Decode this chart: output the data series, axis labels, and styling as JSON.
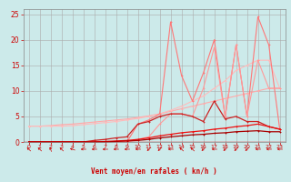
{
  "bg_color": "#cceaea",
  "grid_color": "#aaaaaa",
  "xlabel": "Vent moyen/en rafales ( kn/h )",
  "xlabel_color": "#cc0000",
  "tick_color": "#cc0000",
  "xlim": [
    -0.5,
    23.5
  ],
  "ylim": [
    0,
    26
  ],
  "yticks": [
    0,
    5,
    10,
    15,
    20,
    25
  ],
  "xticks": [
    0,
    1,
    2,
    3,
    4,
    5,
    6,
    7,
    8,
    9,
    10,
    11,
    12,
    13,
    14,
    15,
    16,
    17,
    18,
    19,
    20,
    21,
    22,
    23
  ],
  "series": [
    {
      "x": [
        0,
        1,
        2,
        3,
        4,
        5,
        6,
        7,
        8,
        9,
        10,
        11,
        12,
        13,
        14,
        15,
        16,
        17,
        18,
        19,
        20,
        21,
        22,
        23
      ],
      "y": [
        3.1,
        3.1,
        3.2,
        3.4,
        3.5,
        3.7,
        3.9,
        4.1,
        4.3,
        4.5,
        4.8,
        5.1,
        5.5,
        6.0,
        6.5,
        7.0,
        7.5,
        8.0,
        8.5,
        9.0,
        9.5,
        10.0,
        10.5,
        10.5
      ],
      "color": "#ffaaaa",
      "lw": 0.8,
      "marker": "+"
    },
    {
      "x": [
        0,
        1,
        2,
        3,
        4,
        5,
        6,
        7,
        8,
        9,
        10,
        11,
        12,
        13,
        14,
        15,
        16,
        17,
        18,
        19,
        20,
        21,
        22,
        23
      ],
      "y": [
        3.1,
        3.1,
        3.1,
        3.1,
        3.2,
        3.4,
        3.6,
        3.8,
        4.0,
        4.3,
        4.6,
        5.0,
        5.5,
        6.2,
        7.0,
        8.0,
        9.0,
        10.5,
        12.0,
        14.0,
        15.0,
        16.0,
        16.0,
        10.5
      ],
      "color": "#ffbbbb",
      "lw": 0.8,
      "marker": "+"
    },
    {
      "x": [
        0,
        1,
        2,
        3,
        4,
        5,
        6,
        7,
        8,
        9,
        10,
        11,
        12,
        13,
        14,
        15,
        16,
        17,
        18,
        19,
        20,
        21,
        22,
        23
      ],
      "y": [
        0.0,
        0.0,
        0.0,
        0.0,
        0.0,
        0.0,
        0.0,
        0.0,
        0.0,
        0.0,
        3.5,
        4.3,
        5.5,
        23.5,
        13.0,
        8.0,
        13.5,
        20.0,
        5.0,
        19.0,
        5.0,
        24.5,
        19.0,
        2.5
      ],
      "color": "#ff7777",
      "lw": 0.8,
      "marker": "+"
    },
    {
      "x": [
        0,
        1,
        2,
        3,
        4,
        5,
        6,
        7,
        8,
        9,
        10,
        11,
        12,
        13,
        14,
        15,
        16,
        17,
        18,
        19,
        20,
        21,
        22,
        23
      ],
      "y": [
        0.0,
        0.0,
        0.0,
        0.0,
        0.0,
        0.0,
        0.0,
        0.0,
        0.0,
        0.0,
        0.5,
        1.0,
        3.5,
        5.5,
        5.5,
        5.0,
        10.5,
        18.5,
        5.0,
        19.0,
        5.0,
        16.0,
        10.5,
        10.5
      ],
      "color": "#ff9999",
      "lw": 0.8,
      "marker": "+"
    },
    {
      "x": [
        0,
        1,
        2,
        3,
        4,
        5,
        6,
        7,
        8,
        9,
        10,
        11,
        12,
        13,
        14,
        15,
        16,
        17,
        18,
        19,
        20,
        21,
        22,
        23
      ],
      "y": [
        0.0,
        0.0,
        0.0,
        0.0,
        0.0,
        0.0,
        0.3,
        0.5,
        0.8,
        1.0,
        3.5,
        4.0,
        5.0,
        5.5,
        5.5,
        5.0,
        4.0,
        8.0,
        4.5,
        5.0,
        4.0,
        4.0,
        3.0,
        2.5
      ],
      "color": "#cc2222",
      "lw": 0.9,
      "marker": "+"
    },
    {
      "x": [
        0,
        1,
        2,
        3,
        4,
        5,
        6,
        7,
        8,
        9,
        10,
        11,
        12,
        13,
        14,
        15,
        16,
        17,
        18,
        19,
        20,
        21,
        22,
        23
      ],
      "y": [
        0.0,
        0.0,
        0.0,
        0.0,
        0.0,
        0.0,
        0.0,
        0.1,
        0.2,
        0.3,
        0.5,
        0.8,
        1.2,
        1.5,
        1.8,
        2.0,
        2.2,
        2.5,
        2.7,
        3.0,
        3.2,
        3.5,
        3.0,
        2.5
      ],
      "color": "#ee1111",
      "lw": 0.9,
      "marker": "+"
    },
    {
      "x": [
        0,
        1,
        2,
        3,
        4,
        5,
        6,
        7,
        8,
        9,
        10,
        11,
        12,
        13,
        14,
        15,
        16,
        17,
        18,
        19,
        20,
        21,
        22,
        23
      ],
      "y": [
        0.0,
        0.0,
        0.0,
        0.0,
        0.0,
        0.0,
        0.0,
        0.0,
        0.1,
        0.2,
        0.3,
        0.5,
        0.8,
        1.0,
        1.2,
        1.4,
        1.5,
        1.7,
        1.8,
        2.0,
        2.1,
        2.2,
        2.0,
        2.0
      ],
      "color": "#aa0000",
      "lw": 0.9,
      "marker": "+"
    }
  ],
  "bottom_line_color": "#cc0000",
  "spine_color": "#888888"
}
